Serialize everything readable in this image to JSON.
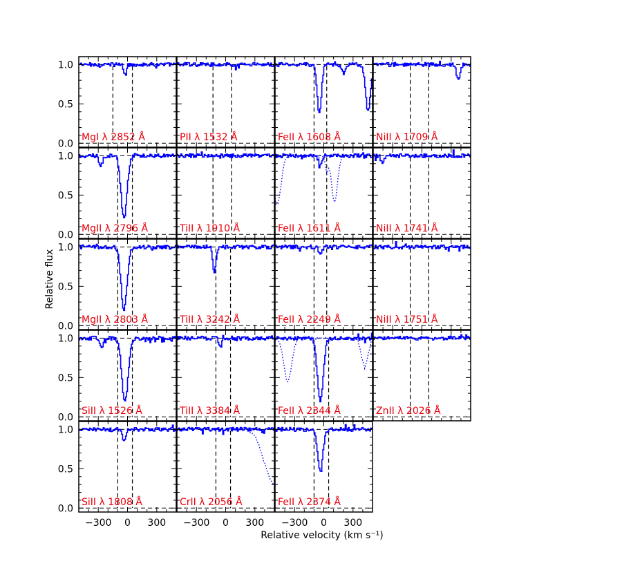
{
  "chart_data": {
    "type": "line",
    "xlabel": "Relative velocity (km s⁻¹)",
    "ylabel": "Relative flux",
    "xlim": [
      -500,
      500
    ],
    "ylim": [
      -0.05,
      1.1
    ],
    "x_ticks": [
      -300,
      0,
      300
    ],
    "y_ticks": [
      0.0,
      0.5,
      1.0
    ],
    "x_tick_labels": [
      "−300",
      "0",
      "300"
    ],
    "y_tick_labels": [
      "0.0",
      "0.5",
      "1.0"
    ],
    "velocity_window": [
      -150,
      50
    ],
    "colors": {
      "spectrum": "#0000ff",
      "label": "#e8000b",
      "guides": "#000000"
    },
    "panels": [
      {
        "row": 0,
        "col": 0,
        "label": "MgI λ 2852 Å",
        "vlines": [
          -150,
          50
        ],
        "features": [
          {
            "v": -30,
            "depth": 0.12,
            "width": 14
          }
        ]
      },
      {
        "row": 0,
        "col": 1,
        "label": "PII λ 1532 Å",
        "vlines": [
          -130,
          60
        ],
        "features": []
      },
      {
        "row": 0,
        "col": 2,
        "label": "FeII λ 1608 Å",
        "vlines": [
          -100,
          30
        ],
        "features": [
          {
            "v": -50,
            "depth": 0.62,
            "width": 22
          },
          {
            "v": 200,
            "depth": 0.12,
            "width": 20
          },
          {
            "v": 450,
            "depth": 0.6,
            "width": 25
          }
        ]
      },
      {
        "row": 0,
        "col": 3,
        "label": "NiII λ 1709 Å",
        "vlines": [
          -120,
          70
        ],
        "features": [
          {
            "v": 370,
            "depth": 0.18,
            "width": 18
          }
        ]
      },
      {
        "row": 1,
        "col": 0,
        "label": "MgII λ 2796 Å",
        "vlines": [
          -100,
          50
        ],
        "features": [
          {
            "v": -40,
            "depth": 0.8,
            "width": 30
          },
          {
            "v": -280,
            "depth": 0.12,
            "width": 20
          }
        ]
      },
      {
        "row": 1,
        "col": 1,
        "label": "TiII λ 1910 Å",
        "vlines": [
          -130,
          60
        ],
        "features": []
      },
      {
        "row": 1,
        "col": 2,
        "label": "FeII λ 1611 Å",
        "vlines": [
          -100,
          30
        ],
        "features": [
          {
            "v": -40,
            "depth": 0.12,
            "width": 18
          }
        ],
        "blend": [
          {
            "v": -480,
            "depth": 0.62,
            "width": 40
          },
          {
            "v": 30,
            "depth": 0.2,
            "width": 15
          },
          {
            "v": 110,
            "depth": 0.6,
            "width": 30
          }
        ]
      },
      {
        "row": 1,
        "col": 3,
        "label": "NiII λ 1741 Å",
        "vlines": [
          -120,
          70
        ],
        "features": [
          {
            "v": -410,
            "depth": 0.1,
            "width": 15
          }
        ]
      },
      {
        "row": 2,
        "col": 0,
        "label": "MgII λ 2803 Å",
        "vlines": [
          -100,
          50
        ],
        "features": [
          {
            "v": -40,
            "depth": 0.8,
            "width": 30
          }
        ]
      },
      {
        "row": 2,
        "col": 1,
        "label": "TiII λ 3242 Å",
        "vlines": [
          -100,
          50
        ],
        "features": [
          {
            "v": -120,
            "depth": 0.32,
            "width": 16
          }
        ]
      },
      {
        "row": 2,
        "col": 2,
        "label": "FeII λ 2249 Å",
        "vlines": [
          -100,
          30
        ],
        "features": [
          {
            "v": -40,
            "depth": 0.1,
            "width": 16
          }
        ]
      },
      {
        "row": 2,
        "col": 3,
        "label": "NiII λ 1751 Å",
        "vlines": [
          -120,
          70
        ],
        "features": []
      },
      {
        "row": 3,
        "col": 0,
        "label": "SiII λ 1526 Å",
        "vlines": [
          -100,
          50
        ],
        "features": [
          {
            "v": -30,
            "depth": 0.8,
            "width": 32
          },
          {
            "v": -270,
            "depth": 0.15,
            "width": 16
          }
        ]
      },
      {
        "row": 3,
        "col": 1,
        "label": "TiII λ 3384 Å",
        "vlines": [
          -100,
          50
        ],
        "features": [
          {
            "v": -60,
            "depth": 0.12,
            "width": 14
          }
        ]
      },
      {
        "row": 3,
        "col": 2,
        "label": "FeII λ 2344 Å",
        "vlines": [
          -100,
          50
        ],
        "features": [
          {
            "v": -40,
            "depth": 0.8,
            "width": 30
          }
        ],
        "blend": [
          {
            "v": -370,
            "depth": 0.55,
            "width": 40
          },
          {
            "v": 420,
            "depth": 0.35,
            "width": 35
          }
        ]
      },
      {
        "row": 3,
        "col": 3,
        "label": "ZnII λ 2026 Å",
        "vlines": [
          -120,
          70
        ],
        "features": []
      },
      {
        "row": 4,
        "col": 0,
        "label": "SiII λ 1808 Å",
        "vlines": [
          -100,
          50
        ],
        "features": [
          {
            "v": -40,
            "depth": 0.15,
            "width": 16
          }
        ]
      },
      {
        "row": 4,
        "col": 1,
        "label": "CrII λ 2056 Å",
        "vlines": [
          -100,
          50
        ],
        "features": [],
        "blend": [
          {
            "v": 500,
            "depth": 0.7,
            "width": 100
          }
        ]
      },
      {
        "row": 4,
        "col": 2,
        "label": "FeII λ 2374 Å",
        "vlines": [
          -100,
          50
        ],
        "features": [
          {
            "v": -40,
            "depth": 0.55,
            "width": 26
          }
        ]
      }
    ]
  }
}
